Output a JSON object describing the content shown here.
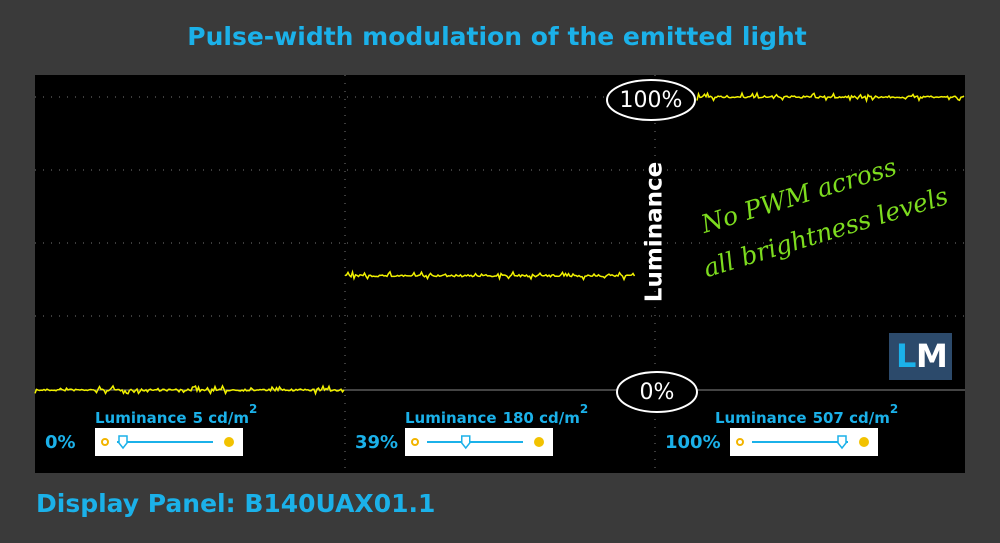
{
  "title": "Pulse-width modulation of the emitted light",
  "footer": "Display Panel: B140UAX01.1",
  "axis_label": "Luminance",
  "scale_labels": {
    "top": "100%",
    "bottom": "0%"
  },
  "annotation": [
    "No PWM across",
    "all brightness levels"
  ],
  "logo": {
    "first": "L",
    "second": "M"
  },
  "panels": [
    {
      "luminance_label": "Luminance",
      "luminance_value": "5 cd/m",
      "unit_power": "2",
      "level": 0,
      "level_label": "0%"
    },
    {
      "luminance_label": "Luminance",
      "luminance_value": "180 cd/m",
      "unit_power": "2",
      "level": 39,
      "level_label": "39%"
    },
    {
      "luminance_label": "Luminance",
      "luminance_value": "507 cd/m",
      "unit_power": "2",
      "level": 100,
      "level_label": "100%"
    }
  ]
}
